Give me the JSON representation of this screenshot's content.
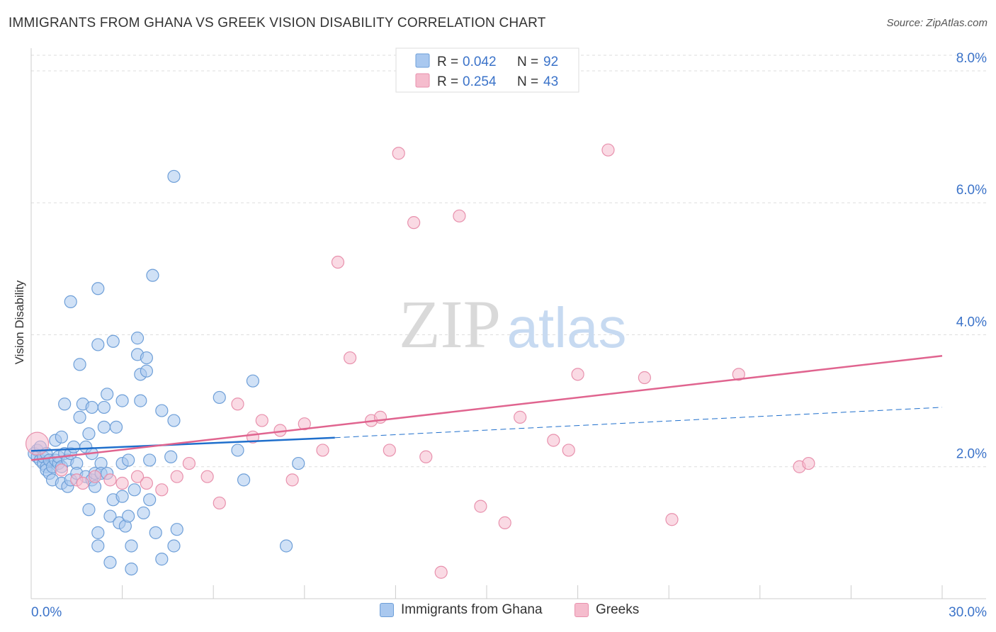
{
  "title": "IMMIGRANTS FROM GHANA VS GREEK VISION DISABILITY CORRELATION CHART",
  "source": "Source: ZipAtlas.com",
  "watermark": {
    "zip": "ZIP",
    "atlas": "atlas"
  },
  "colors": {
    "blue_fill": "#a9c8ef",
    "blue_stroke": "#6e9fd8",
    "blue_line": "#1f6fcc",
    "pink_fill": "#f5bccd",
    "pink_stroke": "#e891ad",
    "pink_line": "#e0648f",
    "accent_text": "#3b73c9",
    "grid": "#dddddd"
  },
  "legend_top": {
    "rows": [
      {
        "r_label": "R =",
        "r_value": "0.042",
        "n_label": "N =",
        "n_value": "92"
      },
      {
        "r_label": "R =",
        "r_value": "0.254",
        "n_label": "N =",
        "n_value": "43"
      }
    ]
  },
  "chart_data": {
    "type": "scatter",
    "title": "IMMIGRANTS FROM GHANA VS GREEK VISION DISABILITY CORRELATION CHART",
    "xlabel": "",
    "ylabel": "Vision Disability",
    "xlim": [
      0,
      30
    ],
    "ylim": [
      0,
      8.3
    ],
    "x_tick_labels": [
      "0.0%",
      "30.0%"
    ],
    "y_ticks": [
      2,
      4,
      6,
      8
    ],
    "y_tick_labels": [
      "2.0%",
      "4.0%",
      "6.0%",
      "8.0%"
    ],
    "grid": "horizontal-dashed",
    "legend_placement": "top-center and bottom",
    "series": [
      {
        "name": "Immigrants from Ghana",
        "r": 0.042,
        "n": 92,
        "trend": {
          "x0": 0,
          "y0": 2.24,
          "x1": 10,
          "y1": 2.44,
          "dashed_to_x": 30,
          "dashed_to_y": 2.9
        },
        "points": [
          [
            0.1,
            2.2
          ],
          [
            0.2,
            2.25
          ],
          [
            0.2,
            2.15
          ],
          [
            0.3,
            2.1
          ],
          [
            0.3,
            2.3
          ],
          [
            0.4,
            2.05
          ],
          [
            0.4,
            2.15
          ],
          [
            0.5,
            2.0
          ],
          [
            0.5,
            2.2
          ],
          [
            0.5,
            1.95
          ],
          [
            0.6,
            2.1
          ],
          [
            0.6,
            1.9
          ],
          [
            0.7,
            2.0
          ],
          [
            0.7,
            1.8
          ],
          [
            0.8,
            2.1
          ],
          [
            0.8,
            2.4
          ],
          [
            0.9,
            2.05
          ],
          [
            0.9,
            2.15
          ],
          [
            1.0,
            2.0
          ],
          [
            1.0,
            2.45
          ],
          [
            1.0,
            1.75
          ],
          [
            1.1,
            2.95
          ],
          [
            1.1,
            2.2
          ],
          [
            1.2,
            1.7
          ],
          [
            1.2,
            2.1
          ],
          [
            1.3,
            2.2
          ],
          [
            1.3,
            1.8
          ],
          [
            1.4,
            2.3
          ],
          [
            1.5,
            2.05
          ],
          [
            1.5,
            1.9
          ],
          [
            1.6,
            2.75
          ],
          [
            1.7,
            2.95
          ],
          [
            1.8,
            2.3
          ],
          [
            1.8,
            1.85
          ],
          [
            1.9,
            2.5
          ],
          [
            1.9,
            1.35
          ],
          [
            2.0,
            2.2
          ],
          [
            2.0,
            2.9
          ],
          [
            2.0,
            1.8
          ],
          [
            2.1,
            1.7
          ],
          [
            2.1,
            1.9
          ],
          [
            2.2,
            1.0
          ],
          [
            2.2,
            0.8
          ],
          [
            2.3,
            2.05
          ],
          [
            2.3,
            1.9
          ],
          [
            2.4,
            2.6
          ],
          [
            2.4,
            2.9
          ],
          [
            2.5,
            3.1
          ],
          [
            2.5,
            1.9
          ],
          [
            2.6,
            0.55
          ],
          [
            2.6,
            1.25
          ],
          [
            2.7,
            1.5
          ],
          [
            2.7,
            3.9
          ],
          [
            2.8,
            2.6
          ],
          [
            2.9,
            1.15
          ],
          [
            3.0,
            1.55
          ],
          [
            3.0,
            2.05
          ],
          [
            3.0,
            3.0
          ],
          [
            3.1,
            1.1
          ],
          [
            3.2,
            2.1
          ],
          [
            3.2,
            1.25
          ],
          [
            3.3,
            0.8
          ],
          [
            3.3,
            0.45
          ],
          [
            3.4,
            1.65
          ],
          [
            3.5,
            3.7
          ],
          [
            3.5,
            3.95
          ],
          [
            3.6,
            3.4
          ],
          [
            3.6,
            3.0
          ],
          [
            3.7,
            1.3
          ],
          [
            3.8,
            3.45
          ],
          [
            3.8,
            3.65
          ],
          [
            3.9,
            1.5
          ],
          [
            3.9,
            2.1
          ],
          [
            4.0,
            4.9
          ],
          [
            4.1,
            1.0
          ],
          [
            4.3,
            0.6
          ],
          [
            4.3,
            2.85
          ],
          [
            4.6,
            2.15
          ],
          [
            4.7,
            0.8
          ],
          [
            4.7,
            2.7
          ],
          [
            4.8,
            1.05
          ],
          [
            2.2,
            3.85
          ],
          [
            1.6,
            3.55
          ],
          [
            1.3,
            4.5
          ],
          [
            2.2,
            4.7
          ],
          [
            4.7,
            6.4
          ],
          [
            6.2,
            3.05
          ],
          [
            6.8,
            2.25
          ],
          [
            7.0,
            1.8
          ],
          [
            7.3,
            3.3
          ],
          [
            8.4,
            0.8
          ],
          [
            8.8,
            2.05
          ]
        ]
      },
      {
        "name": "Greeks",
        "r": 0.254,
        "n": 43,
        "trend": {
          "x0": 0,
          "y0": 2.1,
          "x1": 30,
          "y1": 3.68
        },
        "points": [
          [
            0.2,
            2.35
          ],
          [
            1.0,
            1.95
          ],
          [
            1.5,
            1.8
          ],
          [
            1.7,
            1.75
          ],
          [
            2.1,
            1.85
          ],
          [
            2.6,
            1.8
          ],
          [
            3.0,
            1.75
          ],
          [
            3.5,
            1.85
          ],
          [
            3.8,
            1.75
          ],
          [
            4.3,
            1.65
          ],
          [
            4.8,
            1.85
          ],
          [
            5.2,
            2.05
          ],
          [
            5.8,
            1.85
          ],
          [
            6.2,
            1.45
          ],
          [
            6.8,
            2.95
          ],
          [
            7.3,
            2.45
          ],
          [
            7.6,
            2.7
          ],
          [
            8.2,
            2.55
          ],
          [
            8.6,
            1.8
          ],
          [
            9.0,
            2.65
          ],
          [
            9.6,
            2.25
          ],
          [
            10.1,
            5.1
          ],
          [
            10.5,
            3.65
          ],
          [
            11.2,
            2.7
          ],
          [
            11.5,
            2.75
          ],
          [
            11.8,
            2.25
          ],
          [
            12.1,
            6.75
          ],
          [
            12.6,
            5.7
          ],
          [
            13.0,
            2.15
          ],
          [
            13.5,
            0.4
          ],
          [
            14.1,
            5.8
          ],
          [
            14.8,
            1.4
          ],
          [
            15.6,
            1.15
          ],
          [
            16.1,
            2.75
          ],
          [
            17.2,
            2.4
          ],
          [
            17.7,
            2.25
          ],
          [
            18.0,
            3.4
          ],
          [
            19.0,
            6.8
          ],
          [
            20.2,
            3.35
          ],
          [
            21.1,
            1.2
          ],
          [
            23.3,
            3.4
          ],
          [
            25.3,
            2.0
          ],
          [
            25.6,
            2.05
          ]
        ]
      }
    ]
  },
  "legend_bottom": {
    "items": [
      "Immigrants from Ghana",
      "Greeks"
    ]
  }
}
